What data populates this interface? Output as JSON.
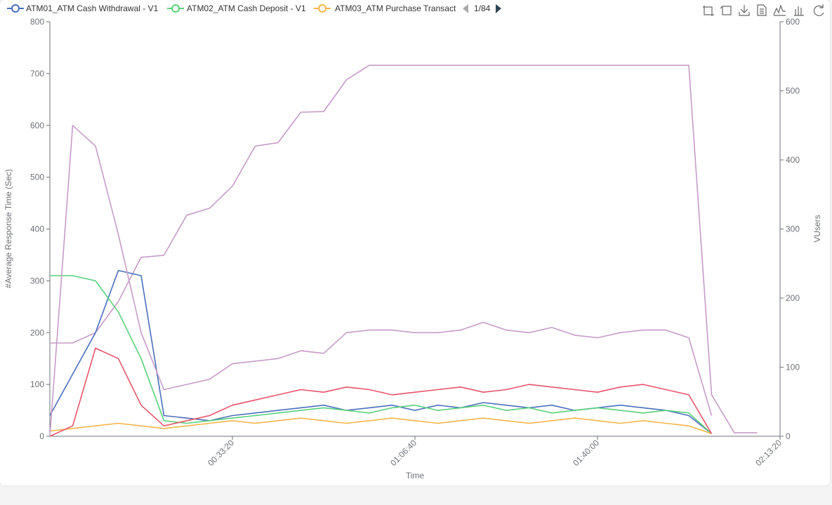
{
  "chart_data": {
    "type": "line",
    "legend_page": "1/84",
    "xlabel": "Time",
    "ylabel": "#Average Response Time (Sec)",
    "y2label": "VUsers",
    "xlim": [
      0,
      8000
    ],
    "xticks": [
      {
        "value": 2000,
        "label": "00:33:20"
      },
      {
        "value": 4000,
        "label": "01:06:40"
      },
      {
        "value": 6000,
        "label": "01:40:00"
      },
      {
        "value": 8000,
        "label": "02:13:20"
      }
    ],
    "ylim": [
      0,
      800
    ],
    "yticks": [
      0,
      100,
      200,
      300,
      400,
      500,
      600,
      700,
      800
    ],
    "y2lim": [
      0,
      600
    ],
    "y2ticks": [
      0,
      100,
      200,
      300,
      400,
      500,
      600
    ],
    "grid": false,
    "x": [
      0,
      250,
      500,
      750,
      1000,
      1250,
      1500,
      1750,
      2000,
      2250,
      2500,
      2750,
      3000,
      3250,
      3500,
      3750,
      4000,
      4250,
      4500,
      4750,
      5000,
      5250,
      5500,
      5750,
      6000,
      6250,
      6500,
      6750,
      7000,
      7250,
      7500,
      7750
    ],
    "series": [
      {
        "color": "#c79bc9",
        "axis": "y2",
        "values": [
          135,
          135,
          150,
          195,
          259,
          262,
          320,
          330,
          362,
          420,
          425,
          469,
          470,
          516,
          537,
          537,
          537,
          537,
          537,
          537,
          537,
          537,
          537,
          537,
          537,
          537,
          537,
          537,
          537,
          60,
          5,
          5
        ]
      },
      {
        "name": "ATM01_ATM Cash Withdrawal - V1",
        "color": "#4a6fbd",
        "values": [
          40,
          120,
          200,
          320,
          310,
          40,
          35,
          30,
          40,
          45,
          50,
          55,
          60,
          50,
          55,
          60,
          50,
          60,
          55,
          65,
          60,
          55,
          60,
          50,
          55,
          60,
          55,
          50,
          40,
          5,
          null,
          null
        ]
      },
      {
        "name": "ATM02_ATM Cash Deposit - V1",
        "color": "#5ad17a",
        "values": [
          310,
          310,
          300,
          240,
          150,
          30,
          25,
          30,
          35,
          40,
          45,
          50,
          55,
          50,
          45,
          55,
          60,
          50,
          55,
          60,
          50,
          55,
          45,
          50,
          55,
          50,
          45,
          50,
          45,
          5,
          null,
          null
        ]
      },
      {
        "name": "ATM03_ATM Purchase Transact",
        "color": "#f5b54a",
        "values": [
          10,
          15,
          20,
          25,
          20,
          15,
          20,
          25,
          30,
          25,
          30,
          35,
          30,
          25,
          30,
          35,
          30,
          25,
          30,
          35,
          30,
          25,
          30,
          35,
          30,
          25,
          30,
          25,
          20,
          5,
          null,
          null
        ]
      },
      {
        "color": "#e8546a",
        "values": [
          0,
          20,
          170,
          150,
          60,
          20,
          30,
          40,
          60,
          70,
          80,
          90,
          85,
          95,
          90,
          80,
          85,
          90,
          95,
          85,
          90,
          100,
          95,
          90,
          85,
          95,
          100,
          90,
          80,
          5,
          null,
          null
        ]
      },
      {
        "color": "#c79bc9",
        "values": [
          0,
          600,
          560,
          390,
          200,
          90,
          100,
          110,
          140,
          145,
          150,
          165,
          160,
          200,
          205,
          205,
          200,
          200,
          205,
          220,
          205,
          200,
          210,
          195,
          190,
          200,
          205,
          205,
          190,
          40,
          null,
          null
        ]
      }
    ]
  }
}
